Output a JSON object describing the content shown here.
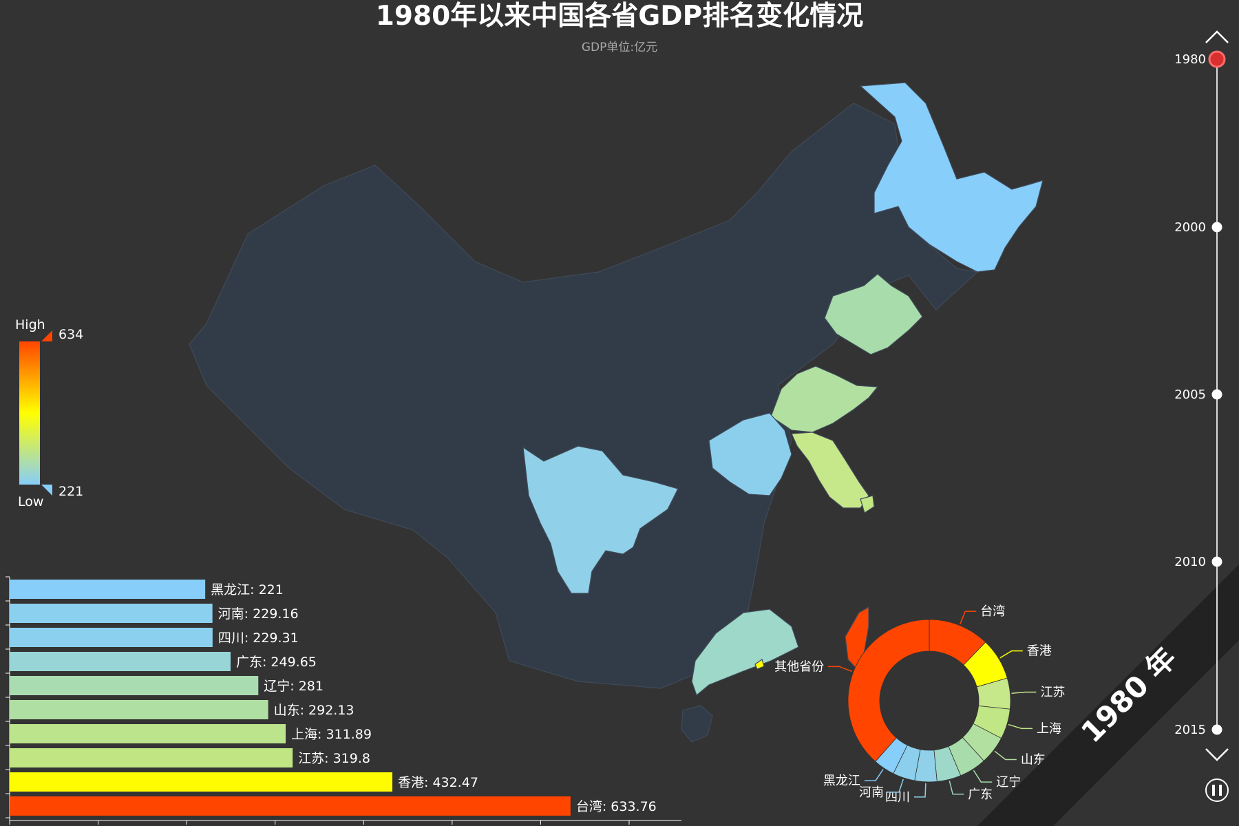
{
  "chart_data": {
    "type": "bar",
    "title": "1980年以来中国各省GDP排名变化情况",
    "subtitle": "GDP单位:亿元",
    "year_label": "1980 年",
    "categories": [
      "黑龙江",
      "河南",
      "四川",
      "广东",
      "辽宁",
      "山东",
      "上海",
      "江苏",
      "香港",
      "台湾"
    ],
    "values": [
      221,
      229.16,
      229.31,
      249.65,
      281,
      292.13,
      311.89,
      319.8,
      432.47,
      633.76
    ],
    "visual_map": {
      "min": 221,
      "max": 634,
      "high_label": "High",
      "low_label": "Low",
      "min_text": "221",
      "max_text": "634"
    },
    "timeline": {
      "labels": [
        "1980",
        "2000",
        "2005",
        "2010",
        "2015"
      ],
      "current": "1980"
    },
    "pie": {
      "type": "pie",
      "labels": [
        "台湾",
        "香港",
        "江苏",
        "上海",
        "山东",
        "辽宁",
        "广东",
        "四川",
        "河南",
        "黑龙江",
        "其他省份"
      ],
      "values": [
        633.76,
        432.47,
        319.8,
        311.89,
        292.13,
        281,
        249.65,
        229.31,
        229.16,
        221,
        2000
      ],
      "colors": [
        "#ff4500",
        "#ffff00",
        "#c7e88a",
        "#c0e685",
        "#b1e0a0",
        "#a8dcaa",
        "#9dd8c8",
        "#90d0e8",
        "#8ccfed",
        "#87cefa",
        "#ff4500"
      ]
    },
    "colors": {
      "high": "#ff4500",
      "mid": "#ffff00",
      "low": "#87cefa",
      "map_base": "#323c48",
      "background": "#333333"
    },
    "grid": false,
    "legend": "left"
  }
}
